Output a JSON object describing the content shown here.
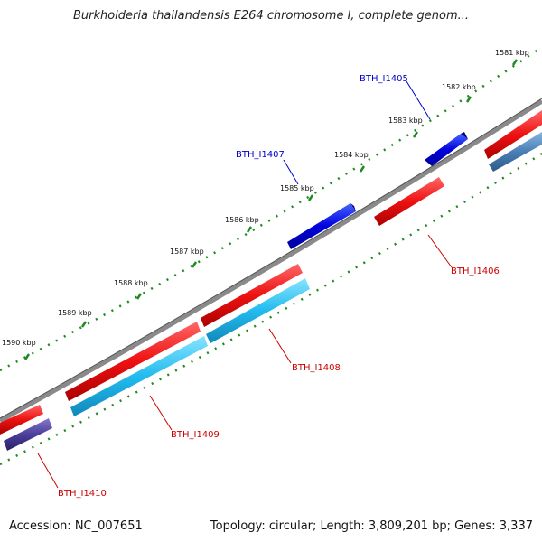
{
  "title": "Burkholderia thailandensis E264 chromosome I, complete genom...",
  "footer": {
    "accession": "Accession: NC_007651",
    "summary": "Topology: circular; Length: 3,809,201 bp; Genes: 3,337"
  },
  "ticks": [
    "1581 kbp",
    "1582 kbp",
    "1583 kbp",
    "1584 kbp",
    "1585 kbp",
    "1586 kbp",
    "1587 kbp",
    "1588 kbp",
    "1589 kbp",
    "1590 kbp"
  ],
  "genes": [
    {
      "label": "BTH_I1405",
      "color": "#0000cc"
    },
    {
      "label": "BTH_I1406",
      "color": "#cc0000"
    },
    {
      "label": "BTH_I1407",
      "color": "#0000cc"
    },
    {
      "label": "BTH_I1408",
      "color": "#cc0000"
    },
    {
      "label": "BTH_I1409",
      "color": "#cc0000"
    },
    {
      "label": "BTH_I1410",
      "color": "#cc0000"
    }
  ],
  "colors": {
    "backbone": "#7a7a7a",
    "tick": "#1f8a1f",
    "cds_forward": "#ee1111",
    "gene_forward": "#1133dd",
    "cds_reverse": "#22bbee",
    "gene_reverse": "#4a3e9a",
    "steel": "#4a7fb5"
  }
}
